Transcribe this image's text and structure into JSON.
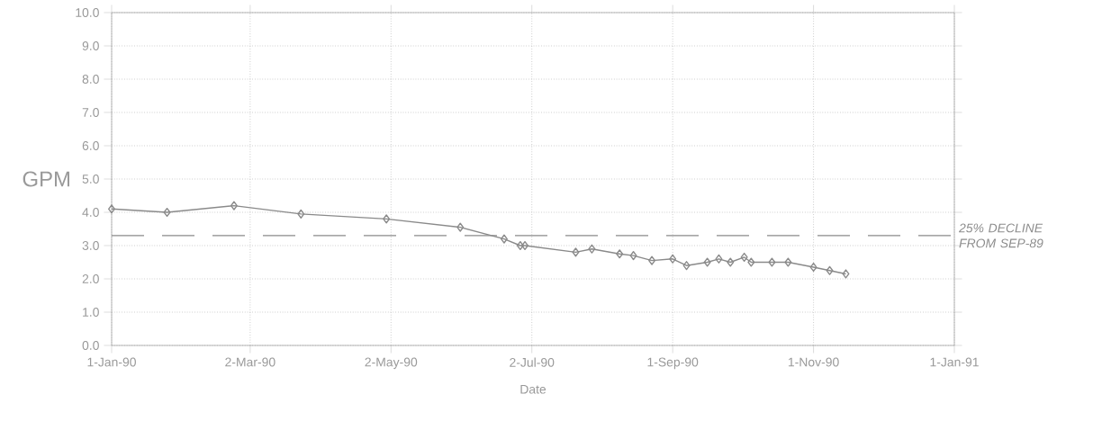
{
  "chart_data": {
    "type": "line",
    "xlabel": "Date",
    "ylabel": "GPM",
    "x": [
      "1990-01-01",
      "1990-01-25",
      "1990-02-23",
      "1990-03-24",
      "1990-04-30",
      "1990-06-01",
      "1990-06-20",
      "1990-06-27",
      "1990-06-29",
      "1990-07-21",
      "1990-07-28",
      "1990-08-09",
      "1990-08-15",
      "1990-08-23",
      "1990-09-01",
      "1990-09-07",
      "1990-09-16",
      "1990-09-21",
      "1990-09-26",
      "1990-10-02",
      "1990-10-05",
      "1990-10-14",
      "1990-10-21",
      "1990-11-01",
      "1990-11-08",
      "1990-11-15"
    ],
    "series": [
      {
        "color": "#8a8a8a",
        "values": [
          4.1,
          4.0,
          4.2,
          3.95,
          3.8,
          3.55,
          3.2,
          3.0,
          3.0,
          2.8,
          2.9,
          2.75,
          2.7,
          2.55,
          2.6,
          2.4,
          2.5,
          2.6,
          2.5,
          2.65,
          2.5,
          2.5,
          2.5,
          2.35,
          2.25,
          2.15
        ]
      }
    ],
    "xlim": [
      "1990-01-01",
      "1991-01-01"
    ],
    "xticks": [
      {
        "value": "1990-01-01",
        "label": "1-Jan-90"
      },
      {
        "value": "1990-03-02",
        "label": "2-Mar-90"
      },
      {
        "value": "1990-05-02",
        "label": "2-May-90"
      },
      {
        "value": "1990-07-02",
        "label": "2-Jul-90"
      },
      {
        "value": "1990-09-01",
        "label": "1-Sep-90"
      },
      {
        "value": "1990-11-01",
        "label": "1-Nov-90"
      },
      {
        "value": "1991-01-01",
        "label": "1-Jan-91"
      }
    ],
    "ylim": [
      0,
      10
    ],
    "yticks": [
      {
        "value": 0,
        "label": "0.0"
      },
      {
        "value": 1,
        "label": "1.0"
      },
      {
        "value": 2,
        "label": "2.0"
      },
      {
        "value": 3,
        "label": "3.0"
      },
      {
        "value": 4,
        "label": "4.0"
      },
      {
        "value": 5,
        "label": "5.0"
      },
      {
        "value": 6,
        "label": "6.0"
      },
      {
        "value": 7,
        "label": "7.0"
      },
      {
        "value": 8,
        "label": "8.0"
      },
      {
        "value": 9,
        "label": "9.0"
      },
      {
        "value": 10,
        "label": "10.0"
      }
    ],
    "ref_lines": [
      {
        "axis": "y",
        "value": 3.3,
        "label": "25% DECLINE FROM SEP-89",
        "color": "#8a8a8a",
        "line_style": "dashed"
      }
    ],
    "grid": true,
    "marker": "diamond",
    "line_style": "solid"
  }
}
